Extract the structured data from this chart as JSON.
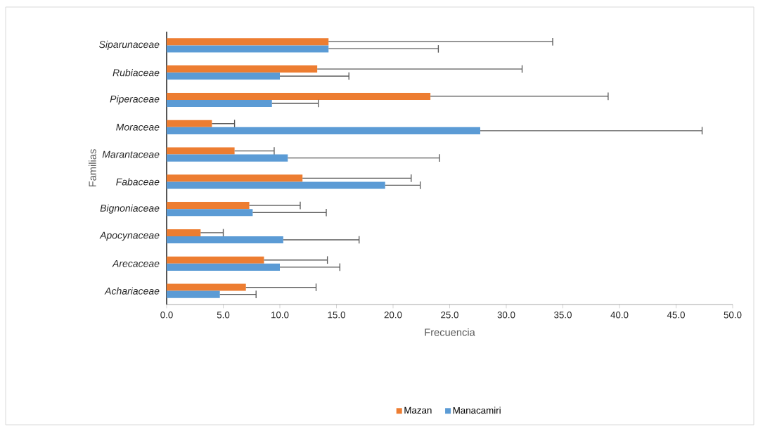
{
  "chart_data": {
    "type": "bar",
    "orientation": "horizontal",
    "xlabel": "Frecuencia",
    "ylabel": "Familias",
    "categories": [
      "Siparunaceae",
      "Rubiaceae",
      "Piperaceae",
      "Moraceae",
      "Marantaceae",
      "Fabaceae",
      "Bignoniaceae",
      "Apocynaceae",
      "Arecaceae",
      "Achariaceae"
    ],
    "series": [
      {
        "name": "Mazan",
        "color": "#ed7d31",
        "values": [
          14.3,
          13.3,
          23.3,
          4.0,
          6.0,
          12.0,
          7.3,
          3.0,
          8.6,
          7.0
        ],
        "errors": [
          [
            14.3,
            34.1
          ],
          [
            13.3,
            31.4
          ],
          [
            23.3,
            39.0
          ],
          [
            4.0,
            6.0
          ],
          [
            6.0,
            9.5
          ],
          [
            12.0,
            21.6
          ],
          [
            7.3,
            11.8
          ],
          [
            3.0,
            5.0
          ],
          [
            8.6,
            14.2
          ],
          [
            7.0,
            13.2
          ]
        ]
      },
      {
        "name": "Manacamiri",
        "color": "#5b9bd5",
        "values": [
          14.3,
          10.0,
          9.3,
          27.7,
          10.7,
          19.3,
          7.6,
          10.3,
          10.0,
          4.7
        ],
        "errors": [
          [
            14.3,
            24.0
          ],
          [
            10.0,
            16.1
          ],
          [
            9.3,
            13.4
          ],
          [
            27.7,
            47.3
          ],
          [
            10.7,
            24.1
          ],
          [
            19.3,
            22.4
          ],
          [
            7.6,
            14.1
          ],
          [
            10.3,
            17.0
          ],
          [
            10.0,
            15.3
          ],
          [
            4.7,
            7.9
          ]
        ]
      }
    ],
    "xlim": [
      0,
      50
    ],
    "xticks": [
      {
        "value": 0,
        "label": "0.0"
      },
      {
        "value": 5,
        "label": "5.0"
      },
      {
        "value": 10,
        "label": "10.0"
      },
      {
        "value": 15,
        "label": "15.0"
      },
      {
        "value": 20,
        "label": "20.0"
      },
      {
        "value": 25,
        "label": "25.0"
      },
      {
        "value": 30,
        "label": "30.0"
      },
      {
        "value": 35,
        "label": "35.0"
      },
      {
        "value": 40,
        "label": "40.0"
      },
      {
        "value": 45,
        "label": "45.0"
      },
      {
        "value": 50,
        "label": "50.0"
      }
    ],
    "grid": false,
    "legend": "bottom"
  }
}
